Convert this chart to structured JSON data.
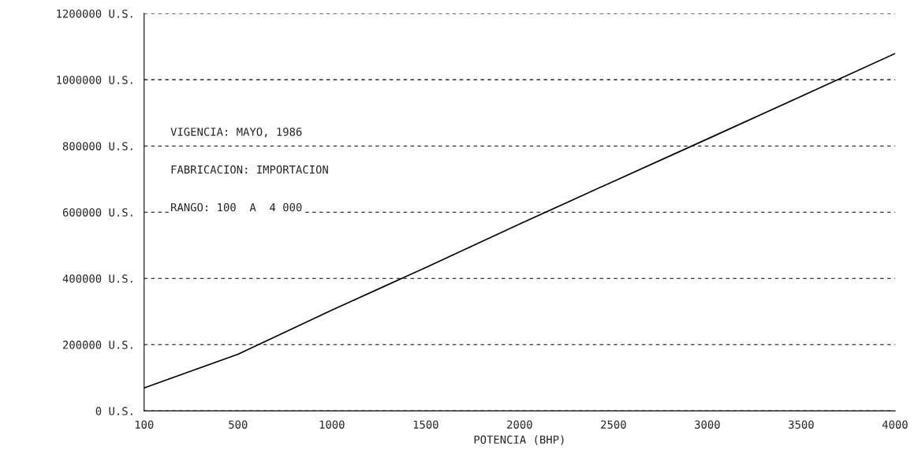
{
  "chart_data": {
    "type": "line",
    "xlabel": "POTENCIA (BHP)",
    "categories": [
      "100",
      "500",
      "1000",
      "1500",
      "2000",
      "2500",
      "3000",
      "3500",
      "4000"
    ],
    "series": [
      {
        "color": "#000000",
        "values": [
          69000,
          171000,
          304000,
          433000,
          564000,
          693000,
          821000,
          950000,
          1079000
        ]
      }
    ],
    "ylim": [
      0,
      1200000
    ],
    "yticks": [
      {
        "value": 0,
        "label": "0 U.S."
      },
      {
        "value": 200000,
        "label": "200000 U.S."
      },
      {
        "value": 400000,
        "label": "400000 U.S."
      },
      {
        "value": 600000,
        "label": "600000 U.S."
      },
      {
        "value": 800000,
        "label": "800000 U.S."
      },
      {
        "value": 1000000,
        "label": "1000000 U.S."
      },
      {
        "value": 1200000,
        "label": "1200000 U.S."
      }
    ],
    "grid": "y",
    "line_style": "solid",
    "annotations": [
      "VIGENCIA: MAYO, 1986",
      "FABRICACION: IMPORTACION",
      "RANGO: 100  A  4 000"
    ]
  }
}
